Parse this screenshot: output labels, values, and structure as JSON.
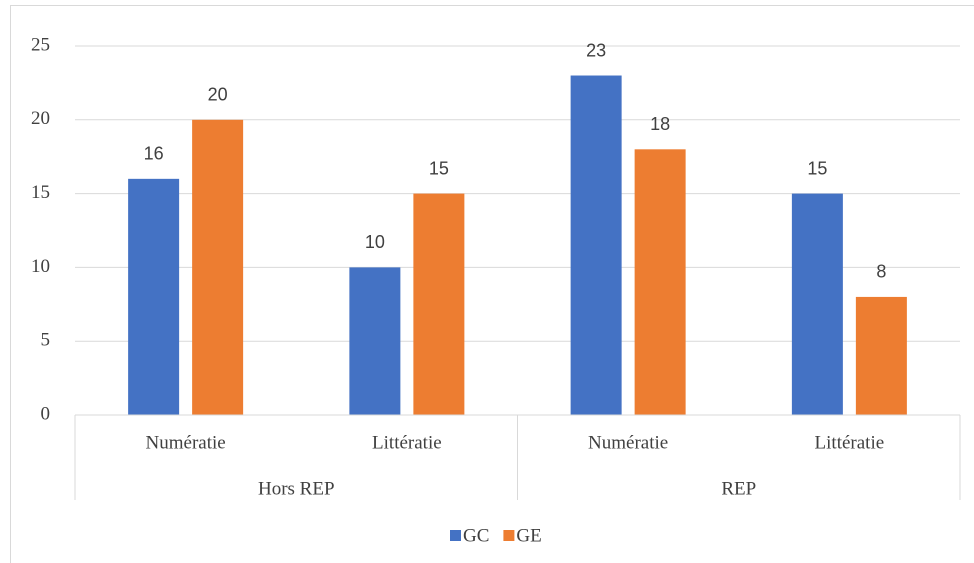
{
  "chart_data": {
    "type": "bar",
    "categories": [
      "Numératie",
      "Littératie",
      "Numératie",
      "Littératie"
    ],
    "groups": [
      "Hors REP",
      "REP"
    ],
    "series": [
      {
        "name": "GC",
        "color": "#4472c4",
        "values": [
          16,
          10,
          23,
          15
        ]
      },
      {
        "name": "GE",
        "color": "#ed7d31",
        "values": [
          20,
          15,
          18,
          8
        ]
      }
    ],
    "ylim": [
      0,
      25
    ],
    "yticks": [
      0,
      5,
      10,
      15,
      20,
      25
    ],
    "grid": true,
    "legend": "bottom"
  }
}
